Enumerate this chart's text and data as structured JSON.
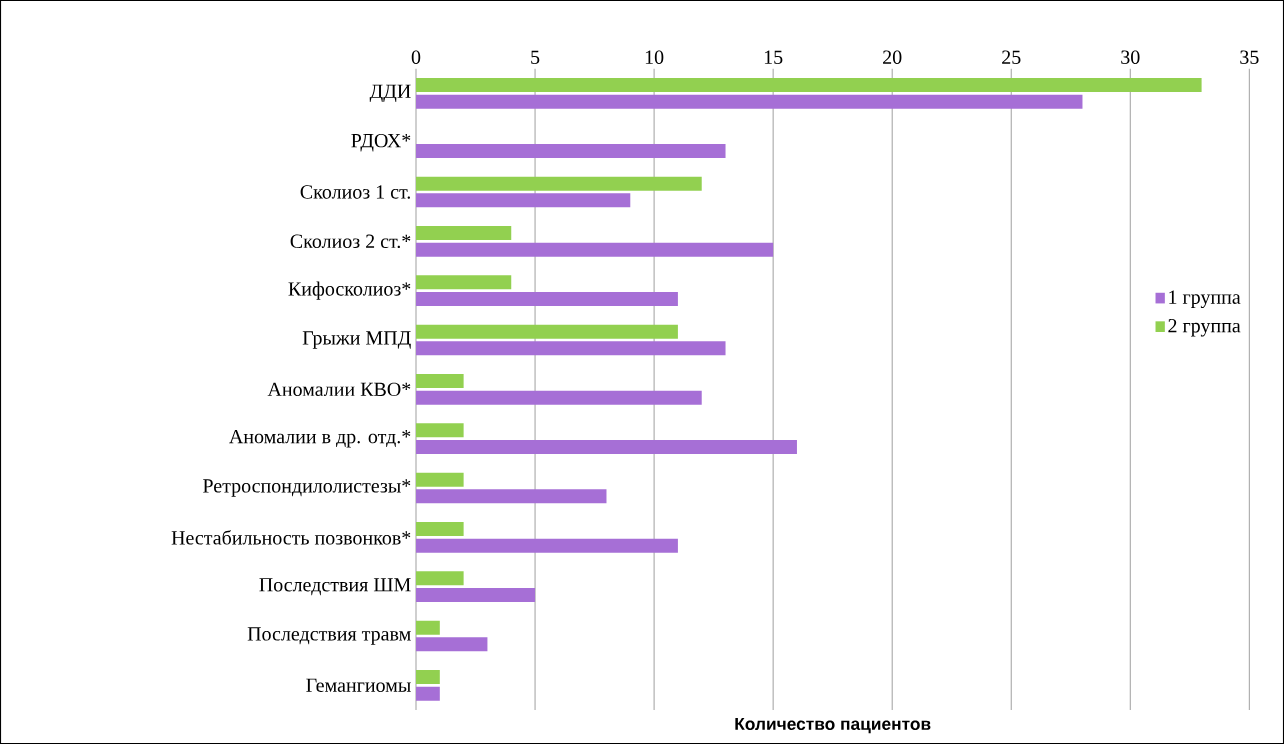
{
  "chart_data": {
    "type": "bar",
    "orientation": "horizontal",
    "xlabel": "Количество пациентов",
    "categories": [
      "ДДИ",
      "РДОХ*",
      "Сколиоз 1 ст.",
      "Сколиоз 2 ст.*",
      "Кифосколиоз*",
      "Грыжи МПД",
      "Аномалии КВО*",
      "Аномалии в др. отд.*",
      "Ретроспондилолистезы*",
      "Нестабильность позвонков*",
      "Последствия ШМ",
      "Последствия травм",
      "Гемангиомы"
    ],
    "series": [
      {
        "name": "1 группа",
        "color": "#a66fd6",
        "values": [
          28,
          13,
          9,
          15,
          11,
          13,
          12,
          16,
          8,
          11,
          5,
          3,
          1
        ]
      },
      {
        "name": "2 группа",
        "color": "#92d050",
        "values": [
          33,
          0,
          12,
          4,
          4,
          11,
          2,
          2,
          2,
          2,
          2,
          1,
          1
        ]
      }
    ],
    "xlim": [
      0,
      35
    ],
    "xticks": [
      0,
      5,
      10,
      15,
      20,
      25,
      30,
      35
    ],
    "grid": "x",
    "legend": "right"
  }
}
